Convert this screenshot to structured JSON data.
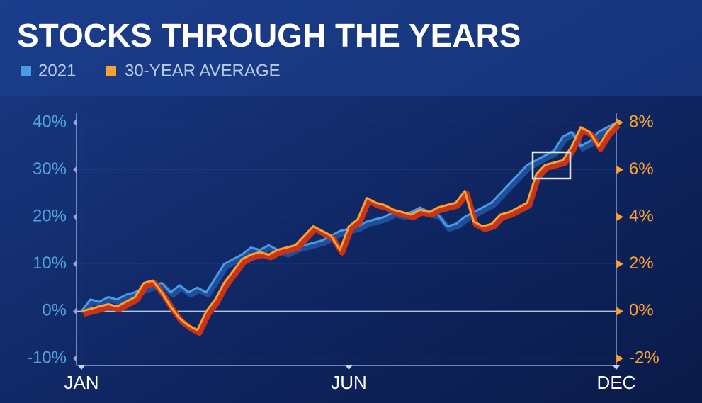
{
  "chart_data": {
    "type": "line",
    "title": "STOCKS THROUGH THE YEARS",
    "categories": [
      "JAN",
      null,
      null,
      null,
      null,
      null,
      null,
      null,
      null,
      null,
      null,
      null,
      null,
      null,
      null,
      null,
      null,
      null,
      null,
      null,
      null,
      null,
      null,
      null,
      null,
      null,
      null,
      null,
      null,
      null,
      "JUN",
      null,
      null,
      null,
      null,
      null,
      null,
      null,
      null,
      null,
      null,
      null,
      null,
      null,
      null,
      null,
      null,
      null,
      null,
      null,
      null,
      null,
      null,
      null,
      null,
      null,
      null,
      null,
      null,
      null,
      "DEC"
    ],
    "series": [
      {
        "name": "2021",
        "color": "#4a9be6",
        "values": [
          0,
          2.5,
          2,
          3,
          2.5,
          3.5,
          4,
          5,
          5.5,
          6,
          4,
          5.5,
          4,
          5,
          4,
          7,
          10,
          11,
          12,
          13.5,
          13,
          14,
          13,
          12.5,
          13.5,
          14,
          14.5,
          15,
          16,
          17,
          17.5,
          18,
          19,
          19.5,
          20,
          21,
          20.5,
          21,
          22,
          21,
          20.5,
          18,
          18.5,
          20,
          21,
          22,
          23,
          25,
          27,
          29,
          31,
          32,
          33,
          34,
          37,
          38,
          35,
          36,
          38,
          39,
          40
        ]
      },
      {
        "name": "30-YEAR AVERAGE",
        "color": "#f7a233",
        "axis": "y2",
        "values": [
          0,
          0.1,
          0.2,
          0.3,
          0.2,
          0.4,
          0.6,
          1.2,
          1.3,
          0.8,
          0.2,
          -0.3,
          -0.6,
          -0.8,
          0,
          0.5,
          1.2,
          1.7,
          2.2,
          2.4,
          2.5,
          2.4,
          2.6,
          2.7,
          2.8,
          3.2,
          3.6,
          3.4,
          3.2,
          2.6,
          3.6,
          3.9,
          4.8,
          4.6,
          4.5,
          4.3,
          4.2,
          4.1,
          4.3,
          4.2,
          4.4,
          4.5,
          4.6,
          5.1,
          3.8,
          3.6,
          3.7,
          4.1,
          4.2,
          4.4,
          4.6,
          5.8,
          6.2,
          6.3,
          6.4,
          7.0,
          7.8,
          7.6,
          7.0,
          7.6,
          8.0
        ]
      }
    ],
    "ylim": [
      -10,
      40
    ],
    "yticks": [
      {
        "value": -10,
        "label": "-10%"
      },
      {
        "value": 0,
        "label": "0%"
      },
      {
        "value": 10,
        "label": "10%"
      },
      {
        "value": 20,
        "label": "20%"
      },
      {
        "value": 30,
        "label": "30%"
      },
      {
        "value": 40,
        "label": "40%"
      }
    ],
    "y2lim": [
      -2,
      8
    ],
    "y2ticks": [
      {
        "value": -2,
        "label": "-2%"
      },
      {
        "value": 0,
        "label": "0%"
      },
      {
        "value": 2,
        "label": "2%"
      },
      {
        "value": 4,
        "label": "4%"
      },
      {
        "value": 6,
        "label": "6%"
      },
      {
        "value": 8,
        "label": "8%"
      }
    ],
    "grid": true
  }
}
